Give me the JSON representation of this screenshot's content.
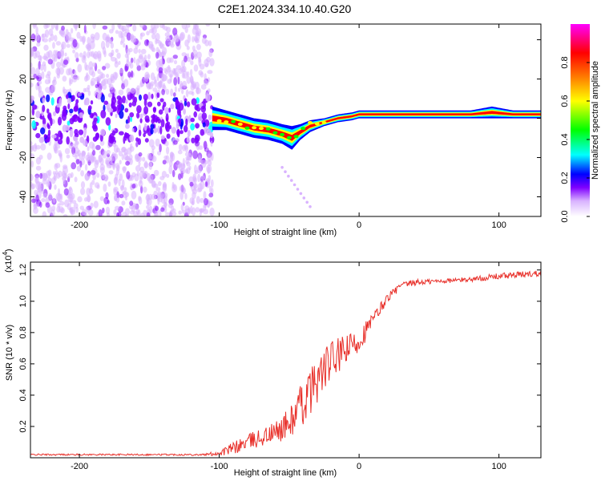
{
  "figure": {
    "title": "C2E1.2024.334.10.40.G20"
  },
  "chart_data": [
    {
      "type": "heatmap",
      "xlabel": "Height of straight line (km)",
      "ylabel": "Frequency (Hz)",
      "xlim": [
        -235,
        130
      ],
      "ylim": [
        -50,
        48
      ],
      "xticks": [
        -200,
        -100,
        0,
        100
      ],
      "yticks": [
        -40,
        -20,
        0,
        20,
        40
      ],
      "colorbar": {
        "label": "Normalized spectral amplitude",
        "range": [
          0,
          1
        ],
        "ticks": [
          0.0,
          0.2,
          0.4,
          0.6,
          0.8
        ],
        "colormap": [
          "#ffffff",
          "#d9b3ff",
          "#7f00ff",
          "#0000ff",
          "#00ffff",
          "#00ff00",
          "#ffff00",
          "#ff8000",
          "#ff0000",
          "#ff00ff"
        ]
      },
      "noise_region": {
        "x": [
          -235,
          -105
        ],
        "y": [
          -50,
          48
        ]
      },
      "ridge": {
        "x": [
          -105,
          -95,
          -85,
          -75,
          -65,
          -55,
          -48,
          -42,
          -35,
          -25,
          -15,
          -5,
          0,
          20,
          40,
          60,
          80,
          95,
          110,
          130
        ],
        "y": [
          0,
          -1,
          -3,
          -5,
          -6,
          -8,
          -10,
          -7,
          -4,
          -2,
          0,
          1,
          2,
          2,
          2,
          2,
          2,
          3,
          2,
          2
        ],
        "width": [
          6,
          5,
          5,
          5,
          5,
          5,
          6,
          4,
          3,
          2,
          2,
          2,
          2,
          2,
          2,
          2,
          2,
          3,
          2,
          2
        ]
      },
      "faint_streak": {
        "x": [
          -55,
          -35
        ],
        "y": [
          -25,
          -45
        ]
      }
    },
    {
      "type": "line",
      "xlabel": "Height of straight line (km)",
      "ylabel": "SNR (10 * v/v)",
      "yscale_label": "(x10",
      "yscale_exponent": "4",
      "xlim": [
        -235,
        130
      ],
      "ylim": [
        0,
        1.25
      ],
      "xticks": [
        -200,
        -100,
        0,
        100
      ],
      "yticks": [
        0.2,
        0.4,
        0.6,
        0.8,
        1.0,
        1.2
      ],
      "color": "#e8302a",
      "series": [
        {
          "x": [
            -235,
            -200,
            -150,
            -110,
            -100,
            -90,
            -80,
            -70,
            -60,
            -50,
            -40,
            -30,
            -20,
            -10,
            0,
            10,
            20,
            30,
            40,
            60,
            80,
            100,
            130
          ],
          "y": [
            0.02,
            0.02,
            0.02,
            0.02,
            0.03,
            0.06,
            0.1,
            0.13,
            0.16,
            0.22,
            0.35,
            0.5,
            0.62,
            0.68,
            0.75,
            0.88,
            1.02,
            1.1,
            1.12,
            1.13,
            1.14,
            1.16,
            1.18
          ],
          "noise": [
            0.005,
            0.005,
            0.005,
            0.006,
            0.02,
            0.04,
            0.05,
            0.06,
            0.07,
            0.1,
            0.15,
            0.15,
            0.13,
            0.1,
            0.08,
            0.05,
            0.03,
            0.02,
            0.02,
            0.015,
            0.015,
            0.02,
            0.02
          ]
        }
      ]
    }
  ]
}
